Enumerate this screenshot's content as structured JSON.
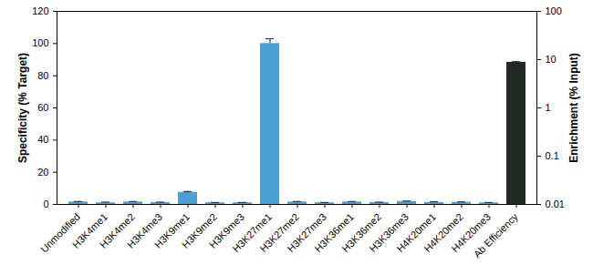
{
  "chart_data": {
    "type": "bar",
    "categories": [
      "Unmodified",
      "H3K4me1",
      "H3K4me2",
      "H3K4me3",
      "H3K9me1",
      "H3K9me2",
      "H3K9me3",
      "H3K27me1",
      "H3K27me2",
      "H3K27me3",
      "H3K36me1",
      "H3K36me2",
      "H3K36me3",
      "H4K20me1",
      "H4K20me2",
      "H4K20me3",
      "Ab Efficiency"
    ],
    "y_label": "Specificity (% Target)",
    "y2_label": "Enrichment (% Input)",
    "ylim": [
      0,
      120
    ],
    "yticks": [
      0,
      20,
      40,
      60,
      80,
      100,
      120
    ],
    "y2lim": [
      0.01,
      100
    ],
    "y2ticks": [
      0.01,
      0.1,
      1,
      10,
      100
    ],
    "log": "y2",
    "series": [
      {
        "color": "#4b9fd5",
        "axis": "y",
        "values": [
          1.5,
          1.0,
          1.5,
          1.2,
          7.5,
          1.0,
          1.0,
          100,
          1.5,
          1.0,
          1.5,
          1.2,
          1.8,
          1.2,
          1.3,
          1.0,
          null
        ],
        "errors": [
          0.3,
          0.4,
          0.3,
          0.2,
          0.5,
          0.2,
          0.2,
          3,
          0.3,
          0.2,
          0.3,
          0.2,
          0.3,
          0.5,
          0.3,
          0.2,
          null
        ]
      },
      {
        "color": "#1f2a23",
        "axis": "y2",
        "values": [
          null,
          null,
          null,
          null,
          null,
          null,
          null,
          null,
          null,
          null,
          null,
          null,
          null,
          null,
          null,
          null,
          8.8
        ],
        "errors": [
          null,
          null,
          null,
          null,
          null,
          null,
          null,
          null,
          null,
          null,
          null,
          null,
          null,
          null,
          null,
          null,
          0.3
        ]
      }
    ]
  }
}
